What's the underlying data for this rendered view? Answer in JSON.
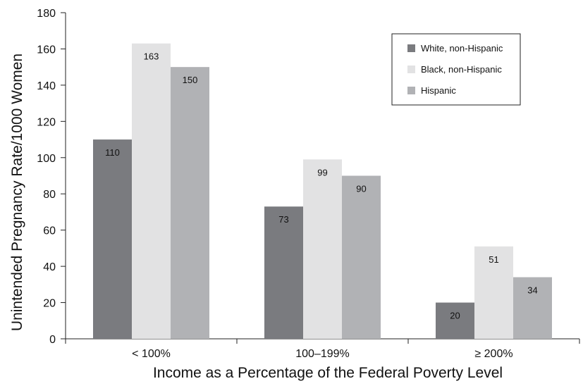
{
  "chart_data": {
    "type": "bar",
    "categories": [
      "< 100%",
      "100–199%",
      "≥ 200%"
    ],
    "series": [
      {
        "name": "White, non-Hispanic",
        "values": [
          110,
          73,
          20
        ],
        "color": "#7a7b7f"
      },
      {
        "name": "Black, non-Hispanic",
        "values": [
          163,
          99,
          51
        ],
        "color": "#e2e2e3"
      },
      {
        "name": "Hispanic",
        "values": [
          150,
          90,
          34
        ],
        "color": "#b1b2b5"
      }
    ],
    "xlabel": "Income as a Percentage of the Federal Poverty Level",
    "ylabel": "Unintended Pregnancy Rate/1000 Women",
    "ylim": [
      0,
      180
    ],
    "yticks": [
      0,
      20,
      40,
      60,
      80,
      100,
      120,
      140,
      160,
      180
    ],
    "grid": false,
    "legend": "top-right"
  }
}
